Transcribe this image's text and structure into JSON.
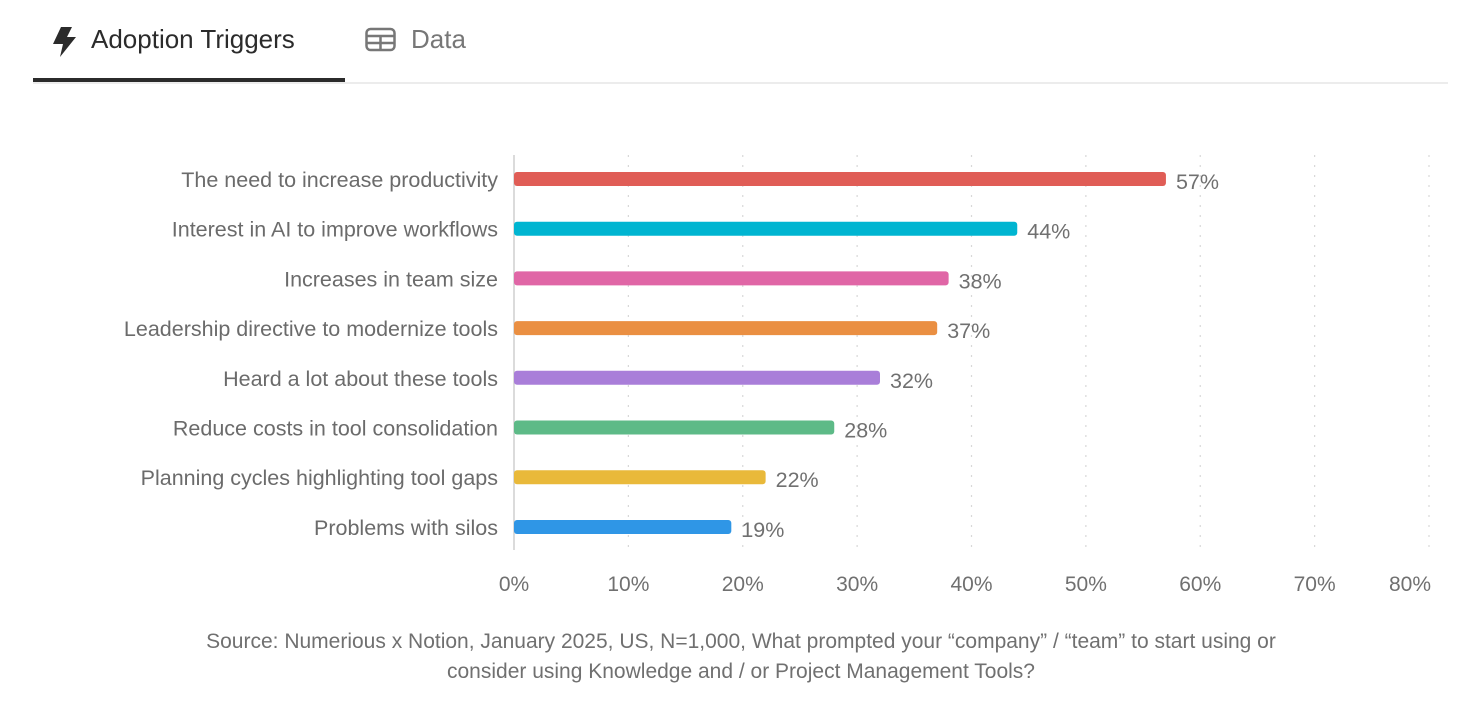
{
  "tabs": [
    {
      "label": "Adoption Triggers",
      "icon": "lightning-icon",
      "active": true
    },
    {
      "label": "Data",
      "icon": "table-icon",
      "active": false
    }
  ],
  "chart_data": {
    "type": "bar",
    "orientation": "horizontal",
    "categories": [
      "The need to increase productivity",
      "Interest in AI to improve workflows",
      "Increases in team size",
      "Leadership directive to modernize tools",
      "Heard a lot about these tools",
      "Reduce costs in tool consolidation",
      "Planning cycles highlighting tool gaps",
      "Problems with silos"
    ],
    "values": [
      57,
      44,
      38,
      37,
      32,
      28,
      22,
      19
    ],
    "data_labels": [
      "57%",
      "44%",
      "38%",
      "37%",
      "32%",
      "28%",
      "22%",
      "19%"
    ],
    "colors": [
      "#e05d56",
      "#00b5d1",
      "#e066a6",
      "#ea8f42",
      "#a97ed9",
      "#5dba87",
      "#e9b93a",
      "#2f96e6"
    ],
    "xlim": [
      0,
      80
    ],
    "xticks": [
      "0%",
      "10%",
      "20%",
      "30%",
      "40%",
      "50%",
      "60%",
      "70%",
      "80%"
    ],
    "grid": true,
    "title": "",
    "xlabel": "",
    "ylabel": ""
  },
  "source": {
    "line1": "Source: Numerious x Notion, January 2025, US, N=1,000, What prompted your “company” / “team” to start using or",
    "line2": "consider using Knowledge and / or Project Management Tools?"
  }
}
